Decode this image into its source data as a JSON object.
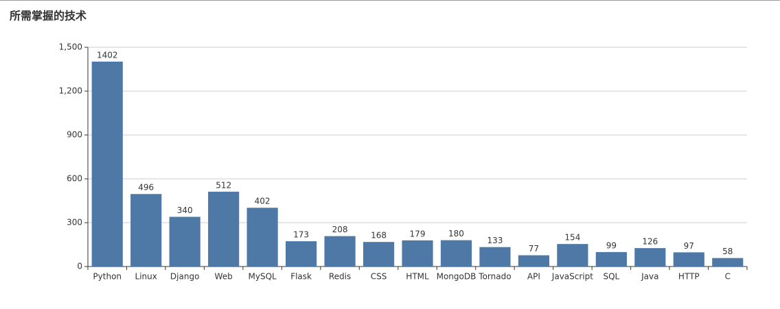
{
  "chart_data": {
    "type": "bar",
    "title": "所需掌握的技术",
    "categories": [
      "Python",
      "Linux",
      "Django",
      "Web",
      "MySQL",
      "Flask",
      "Redis",
      "CSS",
      "HTML",
      "MongoDB",
      "Tornado",
      "API",
      "JavaScript",
      "SQL",
      "Java",
      "HTTP",
      "C"
    ],
    "values": [
      1402,
      496,
      340,
      512,
      402,
      173,
      208,
      168,
      179,
      180,
      133,
      77,
      154,
      99,
      126,
      97,
      58
    ],
    "color": "#4e79a7",
    "ylim": [
      0,
      1500
    ],
    "yticks": [
      0,
      300,
      600,
      900,
      {
        "value": 1200,
        "label": "1,200"
      },
      {
        "value": 1500,
        "label": "1,500"
      }
    ],
    "grid": true
  }
}
